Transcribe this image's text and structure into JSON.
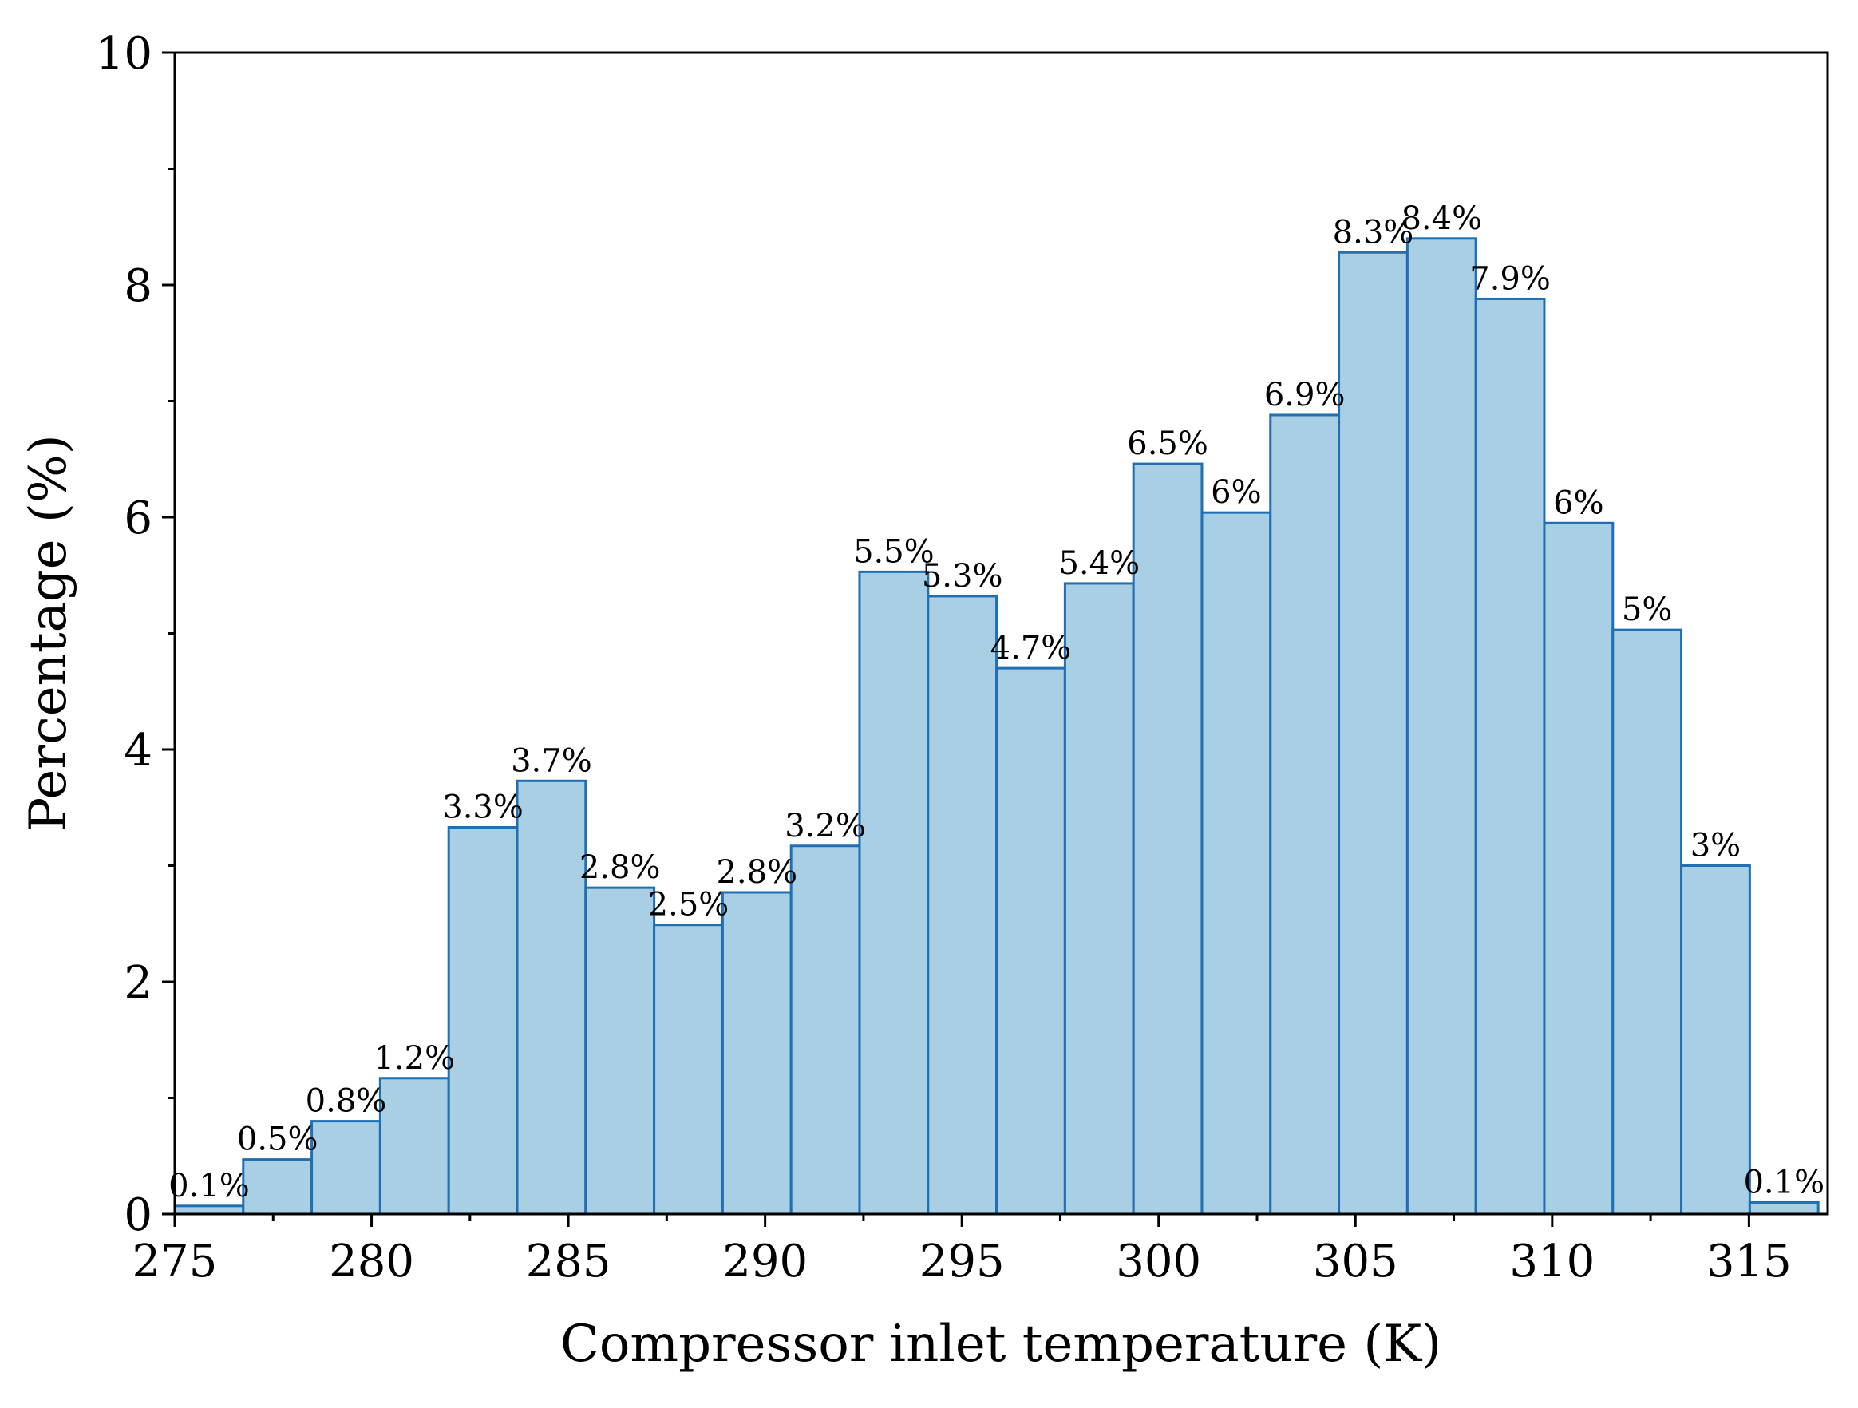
{
  "chart_data": {
    "type": "bar",
    "bin_edges": [
      275.0,
      276.74,
      278.48,
      280.22,
      281.96,
      283.7,
      285.44,
      287.18,
      288.92,
      290.66,
      292.4,
      294.14,
      295.88,
      297.62,
      299.36,
      301.1,
      302.84,
      304.58,
      306.32,
      308.06,
      309.8,
      311.54,
      313.28,
      315.02,
      316.76
    ],
    "values": [
      0.07,
      0.47,
      0.8,
      1.17,
      3.33,
      3.73,
      2.81,
      2.49,
      2.77,
      3.17,
      5.53,
      5.32,
      4.7,
      5.43,
      6.46,
      6.04,
      6.88,
      8.28,
      8.4,
      7.88,
      5.95,
      5.03,
      3.0,
      0.1
    ],
    "labels": [
      "0.1%",
      "0.5%",
      "0.8%",
      "1.2%",
      "3.3%",
      "3.7%",
      "2.8%",
      "2.5%",
      "2.8%",
      "3.2%",
      "5.5%",
      "5.3%",
      "4.7%",
      "5.4%",
      "6.5%",
      "6%",
      "6.9%",
      "8.3%",
      "8.4%",
      "7.9%",
      "6%",
      "5%",
      "3%",
      "0.1%"
    ],
    "xlabel": "Compressor inlet temperature (K)",
    "ylabel": "Percentage (%)",
    "xlim": [
      275,
      317
    ],
    "ylim": [
      0,
      10
    ],
    "xticks": [
      275,
      280,
      285,
      290,
      295,
      300,
      305,
      310,
      315
    ],
    "xtick_labels": [
      "275",
      "280",
      "285",
      "290",
      "295",
      "300",
      "305",
      "310",
      "315"
    ],
    "yticks": [
      0,
      2,
      4,
      6,
      8,
      10
    ],
    "ytick_labels": [
      "0",
      "2",
      "4",
      "6",
      "8",
      "10"
    ],
    "grid": false,
    "bar_fill": "#a8cfe3",
    "bar_stroke": "#1f6fb2"
  }
}
